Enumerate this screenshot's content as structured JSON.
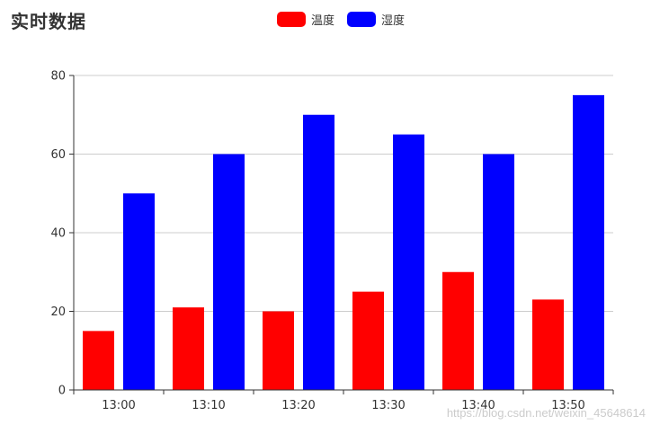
{
  "chart_data": {
    "type": "bar",
    "title": "实时数据",
    "categories": [
      "13:00",
      "13:10",
      "13:20",
      "13:30",
      "13:40",
      "13:50"
    ],
    "series": [
      {
        "name": "温度",
        "color": "#ff0000",
        "values": [
          15,
          21,
          20,
          25,
          30,
          23
        ]
      },
      {
        "name": "湿度",
        "color": "#0000ff",
        "values": [
          50,
          60,
          70,
          65,
          60,
          75
        ]
      }
    ],
    "ylim": [
      0,
      80
    ],
    "yticks": [
      0,
      20,
      40,
      60,
      80
    ],
    "grid": true,
    "legend_position": "top-center"
  },
  "watermark": "https://blog.csdn.net/weixin_45648614"
}
